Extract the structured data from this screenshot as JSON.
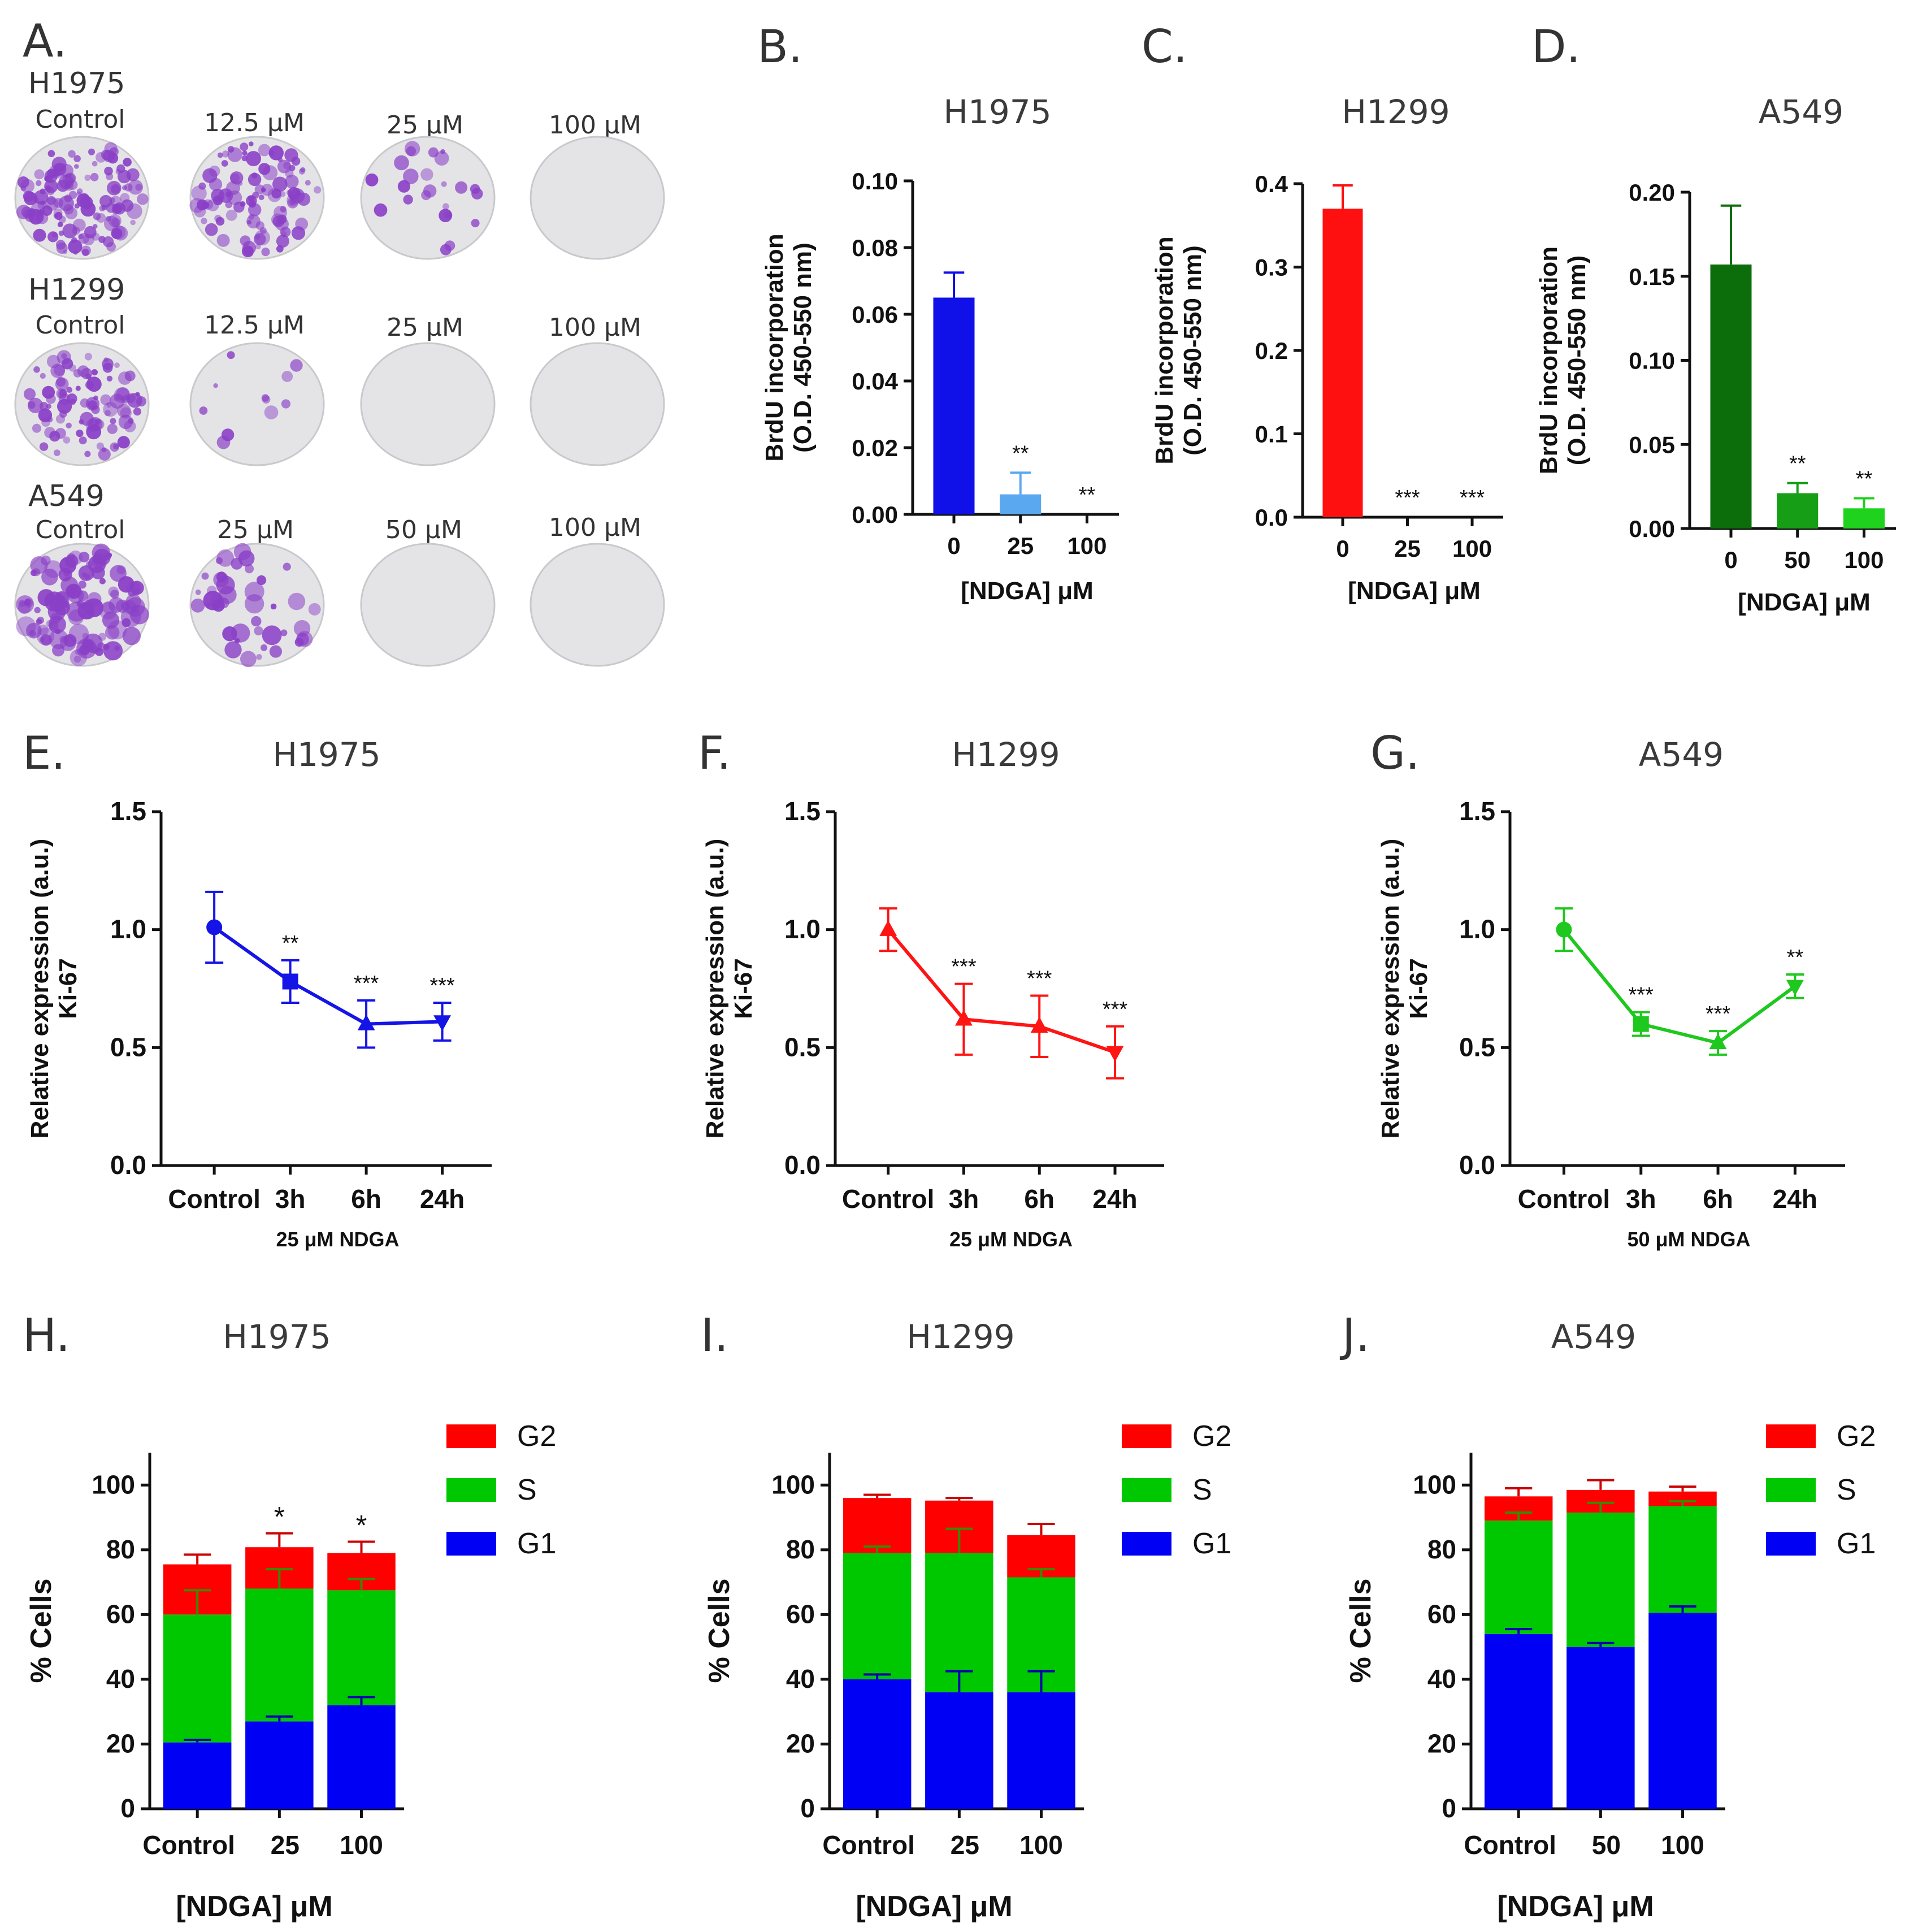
{
  "panel_letters": [
    "A.",
    "B.",
    "C.",
    "D.",
    "E.",
    "F.",
    "G.",
    "H.",
    "I.",
    "J."
  ],
  "colony_assay": {
    "rows": [
      {
        "cell_line": "H1975",
        "labels": [
          "Control",
          "12.5 μM",
          "25 μM",
          "100 μM"
        ],
        "density": [
          1.0,
          0.75,
          0.18,
          0.0
        ],
        "colony_color": "#8a3fc7"
      },
      {
        "cell_line": "H1299",
        "labels": [
          "Control",
          "12.5 μM",
          "25 μM",
          "100 μM"
        ],
        "density": [
          0.7,
          0.08,
          0.0,
          0.0
        ],
        "colony_color": "#8a3fc7"
      },
      {
        "cell_line": "A549",
        "labels": [
          "Control",
          "25 μM",
          "50 μM",
          "100 μM"
        ],
        "density": [
          0.85,
          0.3,
          0.0,
          0.0
        ],
        "colony_color": "#8a3fc7"
      }
    ]
  },
  "chart_data": [
    {
      "panel": "B",
      "type": "bar",
      "title": "H1975",
      "categories": [
        "0",
        "25",
        "100"
      ],
      "values": [
        0.065,
        0.006,
        0.0
      ],
      "errors": [
        0.0075,
        0.0065,
        0.0
      ],
      "colors": [
        "#1010e8",
        "#5aa8f0",
        "#1010e8"
      ],
      "significance": [
        "",
        "**",
        "**"
      ],
      "ylim": [
        0,
        0.1
      ],
      "yticks": [
        "0.00",
        "0.02",
        "0.04",
        "0.06",
        "0.08",
        "0.10"
      ],
      "ylabel_line1": "BrdU incorporation",
      "ylabel_line2": "(O.D. 450-550 nm)",
      "xlabel": "[NDGA] μM"
    },
    {
      "panel": "C",
      "type": "bar",
      "title": "H1299",
      "categories": [
        "0",
        "25",
        "100"
      ],
      "values": [
        0.37,
        0.0,
        0.0
      ],
      "errors": [
        0.028,
        0.0,
        0.0
      ],
      "colors": [
        "#ff1010",
        "#ff1010",
        "#ff1010"
      ],
      "significance": [
        "",
        "***",
        "***"
      ],
      "ylim": [
        0,
        0.4
      ],
      "yticks": [
        "0.0",
        "0.1",
        "0.2",
        "0.3",
        "0.4"
      ],
      "ylabel_line1": "BrdU incorporation",
      "ylabel_line2": "(O.D. 450-550 nm)",
      "xlabel": "[NDGA] μM"
    },
    {
      "panel": "D",
      "type": "bar",
      "title": "A549",
      "categories": [
        "0",
        "50",
        "100"
      ],
      "values": [
        0.157,
        0.021,
        0.012
      ],
      "errors": [
        0.035,
        0.006,
        0.006
      ],
      "colors": [
        "#0b6e0b",
        "#169e16",
        "#1ed21e"
      ],
      "significance": [
        "",
        "**",
        "**"
      ],
      "ylim": [
        0,
        0.2
      ],
      "yticks": [
        "0.00",
        "0.05",
        "0.10",
        "0.15",
        "0.20"
      ],
      "ylabel_line1": "BrdU incorporation",
      "ylabel_line2": "(O.D. 450-550 nm)",
      "xlabel": "[NDGA] μM"
    },
    {
      "panel": "E",
      "type": "line",
      "title": "H1975",
      "categories": [
        "Control",
        "3h",
        "6h",
        "24h"
      ],
      "values": [
        1.01,
        0.78,
        0.6,
        0.61
      ],
      "errors": [
        0.15,
        0.09,
        0.1,
        0.08
      ],
      "markers": [
        "circle",
        "square",
        "triangle-up",
        "triangle-down"
      ],
      "color": "#1414e6",
      "significance": [
        "",
        "**",
        "***",
        "***"
      ],
      "ylim": [
        0,
        1.5
      ],
      "yticks": [
        "0.0",
        "0.5",
        "1.0",
        "1.5"
      ],
      "ylabel_line1": "Relative expression (a.u.)",
      "ylabel_line2": "Ki-67",
      "xlabel": "25 μM NDGA"
    },
    {
      "panel": "F",
      "type": "line",
      "title": "H1299",
      "categories": [
        "Control",
        "3h",
        "6h",
        "24h"
      ],
      "values": [
        1.0,
        0.62,
        0.59,
        0.48
      ],
      "errors": [
        0.09,
        0.15,
        0.13,
        0.11
      ],
      "markers": [
        "triangle-up",
        "triangle-up",
        "triangle-up",
        "triangle-down"
      ],
      "color": "#ff1414",
      "significance": [
        "",
        "***",
        "***",
        "***"
      ],
      "ylim": [
        0,
        1.5
      ],
      "yticks": [
        "0.0",
        "0.5",
        "1.0",
        "1.5"
      ],
      "ylabel_line1": "Relative expression (a.u.)",
      "ylabel_line2": "Ki-67",
      "xlabel": "25 μM NDGA"
    },
    {
      "panel": "G",
      "type": "line",
      "title": "A549",
      "categories": [
        "Control",
        "3h",
        "6h",
        "24h"
      ],
      "values": [
        1.0,
        0.6,
        0.52,
        0.76
      ],
      "errors": [
        0.09,
        0.05,
        0.05,
        0.05
      ],
      "markers": [
        "circle",
        "square",
        "triangle-up",
        "triangle-down"
      ],
      "color": "#1ec81e",
      "significance": [
        "",
        "***",
        "***",
        "**"
      ],
      "ylim": [
        0,
        1.5
      ],
      "yticks": [
        "0.0",
        "0.5",
        "1.0",
        "1.5"
      ],
      "ylabel_line1": "Relative expression (a.u.)",
      "ylabel_line2": "Ki-67",
      "xlabel": "50 μM NDGA"
    },
    {
      "panel": "H",
      "type": "bar",
      "stacked": true,
      "title": "H1975",
      "categories": [
        "Control",
        "25",
        "100"
      ],
      "series": [
        {
          "name": "G1",
          "color": "#0000f5",
          "values": [
            20.5,
            27,
            32
          ],
          "errors": [
            0.8,
            1.5,
            2.5
          ],
          "error_color": "#0000b0"
        },
        {
          "name": "S",
          "color": "#00c800",
          "values": [
            39.5,
            41,
            35.5
          ],
          "errors": [
            7.5,
            6,
            3.5
          ],
          "error_color": "#3a8a00"
        },
        {
          "name": "G2",
          "color": "#ff0000",
          "values": [
            15.5,
            12.8,
            11.5
          ],
          "errors": [
            3,
            4.3,
            3.5
          ],
          "error_color": "#cc0000"
        }
      ],
      "significance": [
        "",
        "*",
        "*"
      ],
      "ylim": [
        0,
        110
      ],
      "yticks": [
        "0",
        "20",
        "40",
        "60",
        "80",
        "100"
      ],
      "ylabel": "% Cells",
      "xlabel": "[NDGA] μM",
      "legend": [
        "G2",
        "S",
        "G1"
      ]
    },
    {
      "panel": "I",
      "type": "bar",
      "stacked": true,
      "title": "H1299",
      "categories": [
        "Control",
        "25",
        "100"
      ],
      "series": [
        {
          "name": "G1",
          "color": "#0000f5",
          "values": [
            40,
            36,
            36
          ],
          "errors": [
            1.5,
            6.5,
            6.5
          ],
          "error_color": "#0000b0"
        },
        {
          "name": "S",
          "color": "#00c800",
          "values": [
            39,
            43,
            35.5
          ],
          "errors": [
            2,
            7.5,
            2.5
          ],
          "error_color": "#3a8a00"
        },
        {
          "name": "G2",
          "color": "#ff0000",
          "values": [
            17,
            16.2,
            13
          ],
          "errors": [
            1,
            0.8,
            3.5
          ],
          "error_color": "#cc0000"
        }
      ],
      "significance": [
        "",
        "",
        ""
      ],
      "ylim": [
        0,
        110
      ],
      "yticks": [
        "0",
        "20",
        "40",
        "60",
        "80",
        "100"
      ],
      "ylabel": "% Cells",
      "xlabel": "[NDGA] μM",
      "legend": [
        "G2",
        "S",
        "G1"
      ]
    },
    {
      "panel": "J",
      "type": "bar",
      "stacked": true,
      "title": "A549",
      "categories": [
        "Control",
        "50",
        "100"
      ],
      "series": [
        {
          "name": "G1",
          "color": "#0000f5",
          "values": [
            54,
            50,
            60.5
          ],
          "errors": [
            1.5,
            1.2,
            2
          ],
          "error_color": "#0000b0"
        },
        {
          "name": "S",
          "color": "#00c800",
          "values": [
            35,
            41.5,
            33
          ],
          "errors": [
            2.5,
            3,
            1.5
          ],
          "error_color": "#3a8a00"
        },
        {
          "name": "G2",
          "color": "#ff0000",
          "values": [
            7.5,
            7,
            4.5
          ],
          "errors": [
            2.5,
            3,
            1.5
          ],
          "error_color": "#cc0000"
        }
      ],
      "significance": [
        "",
        "",
        ""
      ],
      "ylim": [
        0,
        110
      ],
      "yticks": [
        "0",
        "20",
        "40",
        "60",
        "80",
        "100"
      ],
      "ylabel": "% Cells",
      "xlabel": "[NDGA] μM",
      "legend": [
        "G2",
        "S",
        "G1"
      ]
    }
  ]
}
